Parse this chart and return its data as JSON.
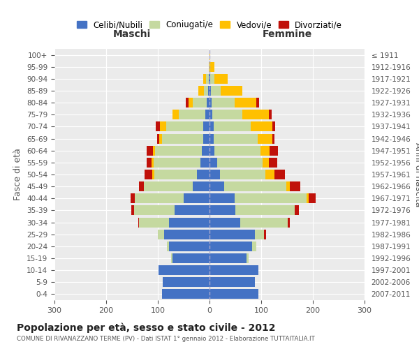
{
  "age_groups": [
    "100+",
    "95-99",
    "90-94",
    "85-89",
    "80-84",
    "75-79",
    "70-74",
    "65-69",
    "60-64",
    "55-59",
    "50-54",
    "45-49",
    "40-44",
    "35-39",
    "30-34",
    "25-29",
    "20-24",
    "15-19",
    "10-14",
    "5-9",
    "0-4"
  ],
  "birth_years": [
    "≤ 1911",
    "1912-1916",
    "1917-1921",
    "1922-1926",
    "1927-1931",
    "1932-1936",
    "1937-1941",
    "1942-1946",
    "1947-1951",
    "1952-1956",
    "1957-1961",
    "1962-1966",
    "1967-1971",
    "1972-1976",
    "1977-1981",
    "1982-1986",
    "1987-1991",
    "1992-1996",
    "1997-2001",
    "2002-2006",
    "2007-2011"
  ],
  "male_celibi": [
    0,
    0,
    2,
    3,
    5,
    8,
    12,
    12,
    15,
    18,
    25,
    32,
    50,
    68,
    78,
    88,
    78,
    72,
    98,
    90,
    92
  ],
  "male_coniugati": [
    0,
    0,
    5,
    8,
    28,
    52,
    72,
    80,
    90,
    90,
    82,
    95,
    95,
    78,
    58,
    12,
    4,
    2,
    0,
    0,
    0
  ],
  "male_vedovi": [
    0,
    2,
    5,
    10,
    8,
    12,
    12,
    5,
    5,
    4,
    4,
    0,
    0,
    0,
    0,
    0,
    0,
    0,
    0,
    0,
    0
  ],
  "male_divorziati": [
    0,
    0,
    0,
    0,
    5,
    0,
    8,
    5,
    12,
    10,
    15,
    10,
    8,
    5,
    2,
    0,
    0,
    0,
    0,
    0,
    0
  ],
  "female_celibi": [
    0,
    0,
    2,
    3,
    4,
    5,
    8,
    8,
    10,
    15,
    20,
    28,
    48,
    50,
    60,
    88,
    82,
    72,
    95,
    88,
    95
  ],
  "female_coniugati": [
    0,
    2,
    8,
    18,
    45,
    58,
    72,
    85,
    88,
    88,
    88,
    120,
    140,
    115,
    92,
    18,
    8,
    4,
    0,
    0,
    0
  ],
  "female_vedovi": [
    2,
    8,
    25,
    42,
    42,
    52,
    42,
    28,
    18,
    12,
    18,
    8,
    4,
    0,
    0,
    0,
    0,
    0,
    0,
    0,
    0
  ],
  "female_divorziati": [
    0,
    0,
    0,
    0,
    5,
    5,
    5,
    5,
    16,
    16,
    20,
    20,
    14,
    8,
    4,
    4,
    0,
    0,
    0,
    0,
    0
  ],
  "color_celibi": "#4472c4",
  "color_coniugati": "#c5d9a0",
  "color_vedovi": "#ffc000",
  "color_divorziati": "#c0110a",
  "title": "Popolazione per età, sesso e stato civile - 2012",
  "subtitle": "COMUNE DI RIVANAZZANO TERME (PV) - Dati ISTAT 1° gennaio 2012 - Elaborazione TUTTAITALIA.IT",
  "xlabel_left": "Maschi",
  "xlabel_right": "Femmine",
  "ylabel_left": "Fasce di età",
  "ylabel_right": "Anni di nascita",
  "xlim": 300,
  "plot_bg": "#ebebeb",
  "fig_bg": "#ffffff",
  "grid_color": "#ffffff"
}
